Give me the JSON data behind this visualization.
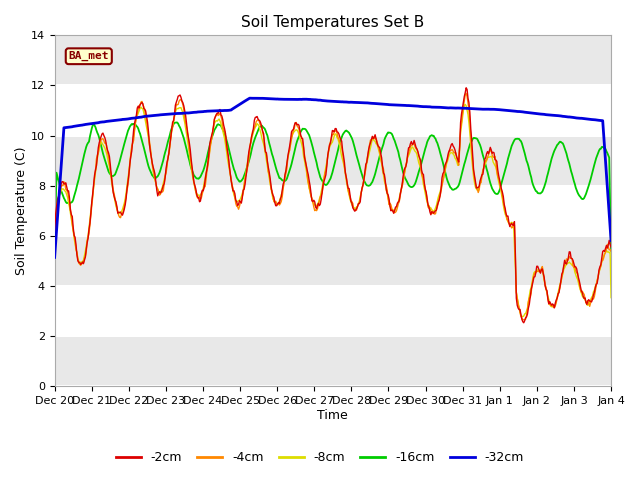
{
  "title": "Soil Temperatures Set B",
  "xlabel": "Time",
  "ylabel": "Soil Temperature (C)",
  "ylim": [
    0,
    14
  ],
  "yticks": [
    0,
    2,
    4,
    6,
    8,
    10,
    12,
    14
  ],
  "legend_labels": [
    "-2cm",
    "-4cm",
    "-8cm",
    "-16cm",
    "-32cm"
  ],
  "legend_colors": [
    "#dd0000",
    "#ff8800",
    "#dddd00",
    "#00cc00",
    "#0000dd"
  ],
  "annotation_text": "BA_met",
  "annotation_bg": "#ffffcc",
  "annotation_border": "#880000",
  "tick_labels": [
    "Dec 20",
    "Dec 21",
    "Dec 22",
    "Dec 23",
    "Dec 24",
    "Dec 25",
    "Dec 26",
    "Dec 27",
    "Dec 28",
    "Dec 29",
    "Dec 30",
    "Dec 31",
    "Jan 1",
    "Jan 2",
    "Jan 3",
    "Jan 4"
  ],
  "fig_bg": "#ffffff",
  "plot_bg": "#ffffff",
  "band_color": "#e8e8e8"
}
